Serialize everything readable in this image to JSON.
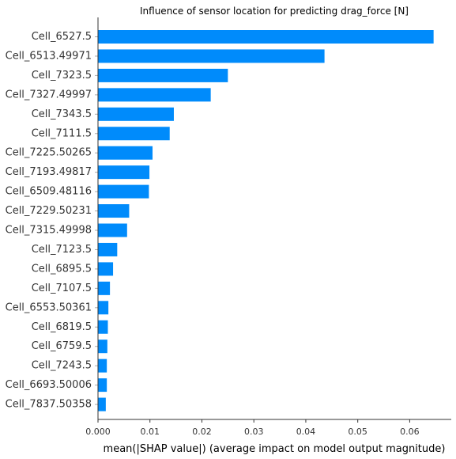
{
  "chart_data": {
    "type": "bar",
    "orientation": "horizontal",
    "title": "Influence of sensor location for predicting drag_force [N]",
    "xlabel": "mean(|SHAP value|) (average impact on model output magnitude)",
    "ylabel": "",
    "xlim": [
      0,
      0.068
    ],
    "xticks": [
      "0.000",
      "0.01",
      "0.02",
      "0.03",
      "0.04",
      "0.05",
      "0.06"
    ],
    "xtick_values": [
      0,
      0.01,
      0.02,
      0.03,
      0.04,
      0.05,
      0.06
    ],
    "categories": [
      "Cell_6527.5",
      "Cell_6513.49971",
      "Cell_7323.5",
      "Cell_7327.49997",
      "Cell_7343.5",
      "Cell_7111.5",
      "Cell_7225.50265",
      "Cell_7193.49817",
      "Cell_6509.48116",
      "Cell_7229.50231",
      "Cell_7315.49998",
      "Cell_7123.5",
      "Cell_6895.5",
      "Cell_7107.5",
      "Cell_6553.50361",
      "Cell_6819.5",
      "Cell_6759.5",
      "Cell_7243.5",
      "Cell_6693.50006",
      "Cell_7837.50358"
    ],
    "values": [
      0.0646,
      0.0436,
      0.025,
      0.0217,
      0.0146,
      0.0138,
      0.0105,
      0.0099,
      0.0098,
      0.006,
      0.0056,
      0.0037,
      0.0029,
      0.0023,
      0.002,
      0.0019,
      0.0018,
      0.0017,
      0.0017,
      0.0015
    ],
    "bar_color": "#008bfb",
    "grid": false,
    "legend": "none"
  }
}
